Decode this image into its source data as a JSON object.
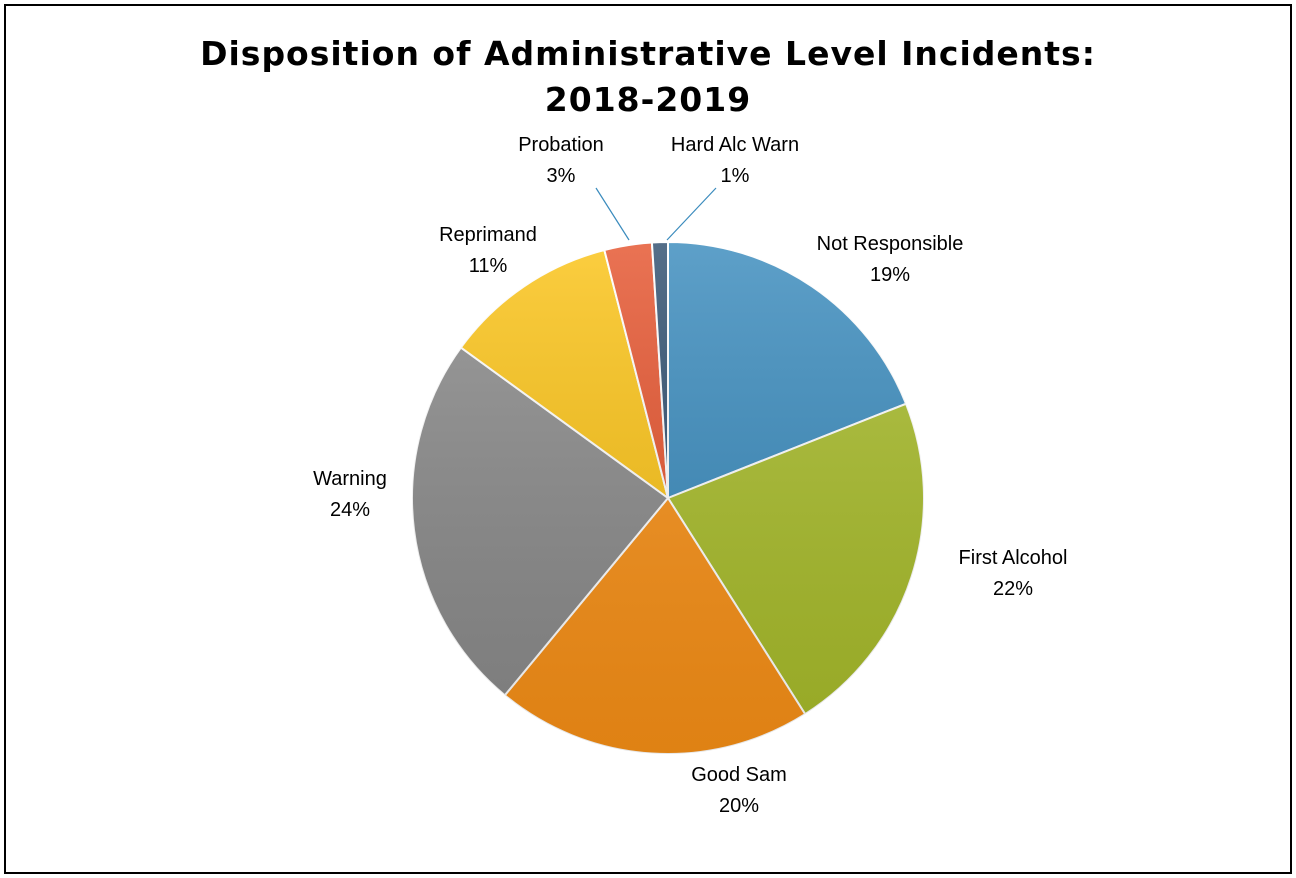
{
  "chart_data": {
    "type": "pie",
    "title_lines": [
      "Disposition of Administrative Level Incidents:",
      "2018-2019"
    ],
    "slices": [
      {
        "label": "Not Responsible",
        "value": 19,
        "pct_label": "19%",
        "color": "#3a8bbd"
      },
      {
        "label": "First Alcohol",
        "value": 22,
        "pct_label": "22%",
        "color": "#a8bc2a"
      },
      {
        "label": "Good Sam",
        "value": 20,
        "pct_label": "20%",
        "color": "#f89016"
      },
      {
        "label": "Warning",
        "value": 24,
        "pct_label": "24%",
        "color": "#8a8a8a"
      },
      {
        "label": "Reprimand",
        "value": 11,
        "pct_label": "11%",
        "color": "#fbc316"
      },
      {
        "label": "Probation",
        "value": 3,
        "pct_label": "3%",
        "color": "#e5542e"
      },
      {
        "label": "Hard Alc Warn",
        "value": 1,
        "pct_label": "1%",
        "color": "#2f4f6f"
      }
    ],
    "start": "12 o'clock",
    "direction": "clockwise",
    "legend": "none",
    "data_labels": "outside"
  }
}
